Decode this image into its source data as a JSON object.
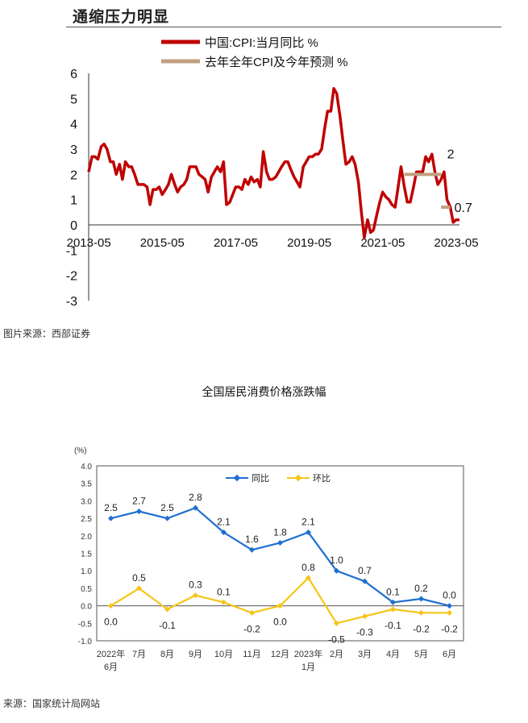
{
  "page": {
    "chart1_title": "通缩压力明显",
    "chart1_source": "图片来源：西部证券",
    "chart2_title": "全国居民消费价格涨跌幅",
    "chart2_source": "来源：国家统计局网站"
  },
  "chart_data": [
    {
      "type": "line",
      "title": "通缩压力明显",
      "legend": [
        "中国:CPI:当月同比 %",
        "去年全年CPI及今年预测 %"
      ],
      "x_ticks": [
        "2013-05",
        "2015-05",
        "2017-05",
        "2019-05",
        "2021-05",
        "2023-05"
      ],
      "y_ticks": [
        "6",
        "5",
        "4",
        "3",
        "2",
        "1",
        "0",
        "-1",
        "-2",
        "-3"
      ],
      "ylim": [
        -3,
        6
      ],
      "xlim": [
        2013.33,
        2023.42
      ],
      "annotations": [
        "2",
        "0.7"
      ],
      "colors": {
        "cpi": "#c00000",
        "forecast": "#c0a080"
      },
      "series": [
        {
          "name": "中国:CPI:当月同比 %",
          "x": [
            2013.33,
            2013.42,
            2013.5,
            2013.58,
            2013.67,
            2013.75,
            2013.83,
            2013.92,
            2014.0,
            2014.08,
            2014.17,
            2014.25,
            2014.33,
            2014.42,
            2014.5,
            2014.58,
            2014.67,
            2014.75,
            2014.83,
            2014.92,
            2015.0,
            2015.08,
            2015.17,
            2015.25,
            2015.33,
            2015.42,
            2015.5,
            2015.58,
            2015.67,
            2015.75,
            2015.83,
            2015.92,
            2016.0,
            2016.08,
            2016.17,
            2016.25,
            2016.33,
            2016.42,
            2016.5,
            2016.58,
            2016.67,
            2016.75,
            2016.83,
            2016.92,
            2017.0,
            2017.08,
            2017.17,
            2017.25,
            2017.33,
            2017.42,
            2017.5,
            2017.58,
            2017.67,
            2017.75,
            2017.83,
            2017.92,
            2018.0,
            2018.08,
            2018.17,
            2018.25,
            2018.33,
            2018.42,
            2018.5,
            2018.58,
            2018.67,
            2018.75,
            2018.83,
            2018.92,
            2019.0,
            2019.08,
            2019.17,
            2019.25,
            2019.33,
            2019.42,
            2019.5,
            2019.58,
            2019.67,
            2019.75,
            2019.83,
            2019.92,
            2020.0,
            2020.08,
            2020.17,
            2020.25,
            2020.33,
            2020.42,
            2020.5,
            2020.58,
            2020.67,
            2020.75,
            2020.83,
            2020.92,
            2021.0,
            2021.08,
            2021.17,
            2021.25,
            2021.33,
            2021.42,
            2021.5,
            2021.58,
            2021.67,
            2021.75,
            2021.83,
            2021.92,
            2022.0,
            2022.08,
            2022.17,
            2022.25,
            2022.33,
            2022.42,
            2022.5,
            2022.58,
            2022.67,
            2022.75,
            2022.83,
            2022.92,
            2023.0,
            2023.08,
            2023.17,
            2023.25,
            2023.33,
            2023.42
          ],
          "values": [
            2.1,
            2.7,
            2.7,
            2.6,
            3.1,
            3.2,
            3.0,
            2.5,
            2.5,
            2.0,
            2.4,
            1.8,
            2.5,
            2.3,
            2.3,
            2.0,
            1.6,
            1.6,
            1.6,
            1.5,
            0.8,
            1.4,
            1.4,
            1.5,
            1.2,
            1.4,
            1.6,
            2.0,
            1.6,
            1.3,
            1.5,
            1.6,
            1.8,
            2.3,
            2.3,
            2.3,
            2.0,
            1.9,
            1.8,
            1.3,
            1.9,
            2.1,
            2.3,
            2.1,
            2.5,
            0.8,
            0.9,
            1.2,
            1.5,
            1.5,
            1.4,
            1.8,
            1.6,
            1.9,
            1.7,
            1.8,
            1.5,
            2.9,
            2.1,
            1.8,
            1.8,
            1.9,
            2.1,
            2.3,
            2.5,
            2.5,
            2.2,
            1.9,
            1.7,
            1.5,
            2.3,
            2.5,
            2.7,
            2.7,
            2.8,
            2.8,
            3.0,
            3.8,
            4.5,
            4.5,
            5.4,
            5.2,
            4.3,
            3.3,
            2.4,
            2.5,
            2.7,
            2.4,
            1.7,
            0.5,
            -0.5,
            0.2,
            -0.3,
            -0.2,
            0.4,
            0.9,
            1.3,
            1.1,
            1.0,
            0.8,
            0.7,
            1.5,
            2.3,
            1.5,
            0.9,
            0.9,
            1.5,
            2.1,
            2.1,
            2.1,
            2.7,
            2.5,
            2.8,
            2.1,
            1.6,
            1.8,
            2.1,
            1.0,
            0.7,
            0.1,
            0.2,
            0.2
          ]
        },
        {
          "name": "去年全年CPI及今年预测 %",
          "segments": [
            {
              "x": [
                2021.92,
                2022.92
              ],
              "y": [
                2.0,
                2.0
              ]
            },
            {
              "x": [
                2022.92,
                2023.17
              ],
              "y": [
                0.7,
                0.7
              ]
            }
          ]
        }
      ]
    },
    {
      "type": "line",
      "title": "全国居民消费价格涨跌幅",
      "ylabel": "(%)",
      "ylim": [
        -1.0,
        4.0
      ],
      "y_ticks": [
        "4.0",
        "3.5",
        "3.0",
        "2.5",
        "2.0",
        "1.5",
        "1.0",
        "0.5",
        "0.0",
        "-0.5",
        "-1.0"
      ],
      "categories": [
        "2022年6月",
        "7月",
        "8月",
        "9月",
        "10月",
        "11月",
        "12月",
        "2023年1月",
        "2月",
        "3月",
        "4月",
        "5月",
        "6月"
      ],
      "colors": {
        "yoy": "#1f6fd1",
        "mom": "#f5c518"
      },
      "series": [
        {
          "name": "同比",
          "values": [
            2.5,
            2.7,
            2.5,
            2.8,
            2.1,
            1.6,
            1.8,
            2.1,
            1.0,
            0.7,
            0.1,
            0.2,
            0.0
          ],
          "labels": [
            "2.5",
            "2.7",
            "2.5",
            "2.8",
            "2.1",
            "1.6",
            "1.8",
            "2.1",
            "1.0",
            "0.7",
            "0.1",
            "0.2",
            "0.0"
          ]
        },
        {
          "name": "环比",
          "values": [
            0.0,
            0.5,
            -0.1,
            0.3,
            0.1,
            -0.2,
            0.0,
            0.8,
            -0.5,
            -0.3,
            -0.1,
            -0.2,
            -0.2
          ],
          "labels": [
            "0.0",
            "0.5",
            "-0.1",
            "0.3",
            "0.1",
            "-0.2",
            "0.0",
            "0.8",
            "-0.5",
            "-0.3",
            "-0.1",
            "-0.2",
            "-0.2"
          ]
        }
      ]
    }
  ]
}
